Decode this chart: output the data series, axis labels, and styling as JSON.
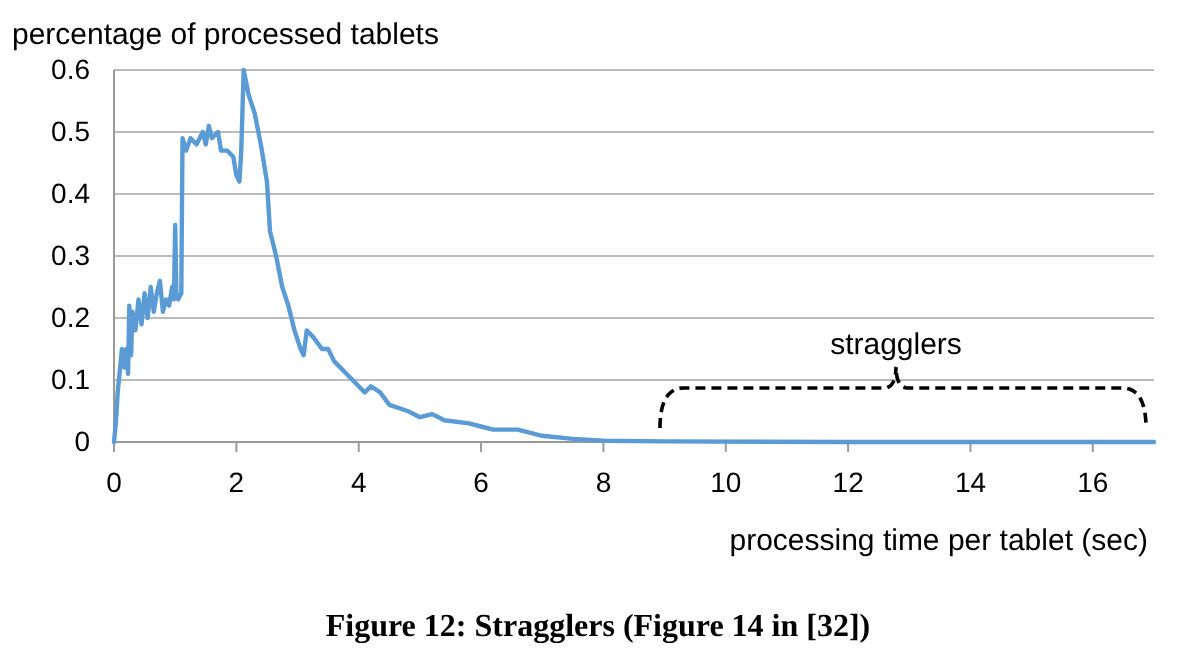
{
  "chart_data": {
    "type": "line",
    "ylabel": "percentage of processed tablets",
    "xlabel": "processing time per tablet (sec)",
    "title": "Figure 12: Stragglers (Figure 14 in [32])",
    "annotations": [
      "stragglers"
    ],
    "xlim": [
      0,
      17
    ],
    "xticks": [
      0,
      2,
      4,
      6,
      8,
      10,
      12,
      14,
      16
    ],
    "ylim": [
      0,
      0.6
    ],
    "yticks": [
      0,
      0.1,
      0.2,
      0.3,
      0.4,
      0.5,
      0.6
    ],
    "grid": "y",
    "x": [
      0,
      0.03,
      0.06,
      0.1,
      0.13,
      0.17,
      0.2,
      0.23,
      0.25,
      0.28,
      0.3,
      0.35,
      0.4,
      0.45,
      0.5,
      0.55,
      0.6,
      0.65,
      0.7,
      0.75,
      0.8,
      0.85,
      0.9,
      0.95,
      0.98,
      1.0,
      1.02,
      1.05,
      1.1,
      1.12,
      1.18,
      1.25,
      1.35,
      1.45,
      1.5,
      1.55,
      1.6,
      1.7,
      1.75,
      1.85,
      1.95,
      2.0,
      2.05,
      2.08,
      2.12,
      2.2,
      2.3,
      2.4,
      2.5,
      2.55,
      2.65,
      2.75,
      2.85,
      2.95,
      3.05,
      3.1,
      3.15,
      3.25,
      3.4,
      3.5,
      3.6,
      3.8,
      4.0,
      4.1,
      4.2,
      4.35,
      4.5,
      4.8,
      5.0,
      5.2,
      5.4,
      5.8,
      6.0,
      6.2,
      6.6,
      7.0,
      7.5,
      8.0,
      9,
      12,
      17
    ],
    "series": [
      {
        "color": "#5b9bd5",
        "values": [
          0,
          0.03,
          0.08,
          0.12,
          0.15,
          0.12,
          0.15,
          0.11,
          0.22,
          0.14,
          0.21,
          0.18,
          0.23,
          0.19,
          0.24,
          0.2,
          0.25,
          0.21,
          0.24,
          0.26,
          0.21,
          0.23,
          0.22,
          0.25,
          0.23,
          0.35,
          0.24,
          0.23,
          0.24,
          0.49,
          0.47,
          0.49,
          0.48,
          0.5,
          0.48,
          0.51,
          0.49,
          0.5,
          0.47,
          0.47,
          0.46,
          0.43,
          0.42,
          0.47,
          0.6,
          0.56,
          0.53,
          0.48,
          0.42,
          0.34,
          0.3,
          0.25,
          0.22,
          0.18,
          0.15,
          0.14,
          0.18,
          0.17,
          0.15,
          0.15,
          0.13,
          0.11,
          0.09,
          0.08,
          0.09,
          0.08,
          0.06,
          0.05,
          0.04,
          0.045,
          0.035,
          0.03,
          0.025,
          0.02,
          0.02,
          0.01,
          0.005,
          0.002,
          0.001,
          0,
          0
        ]
      }
    ]
  }
}
